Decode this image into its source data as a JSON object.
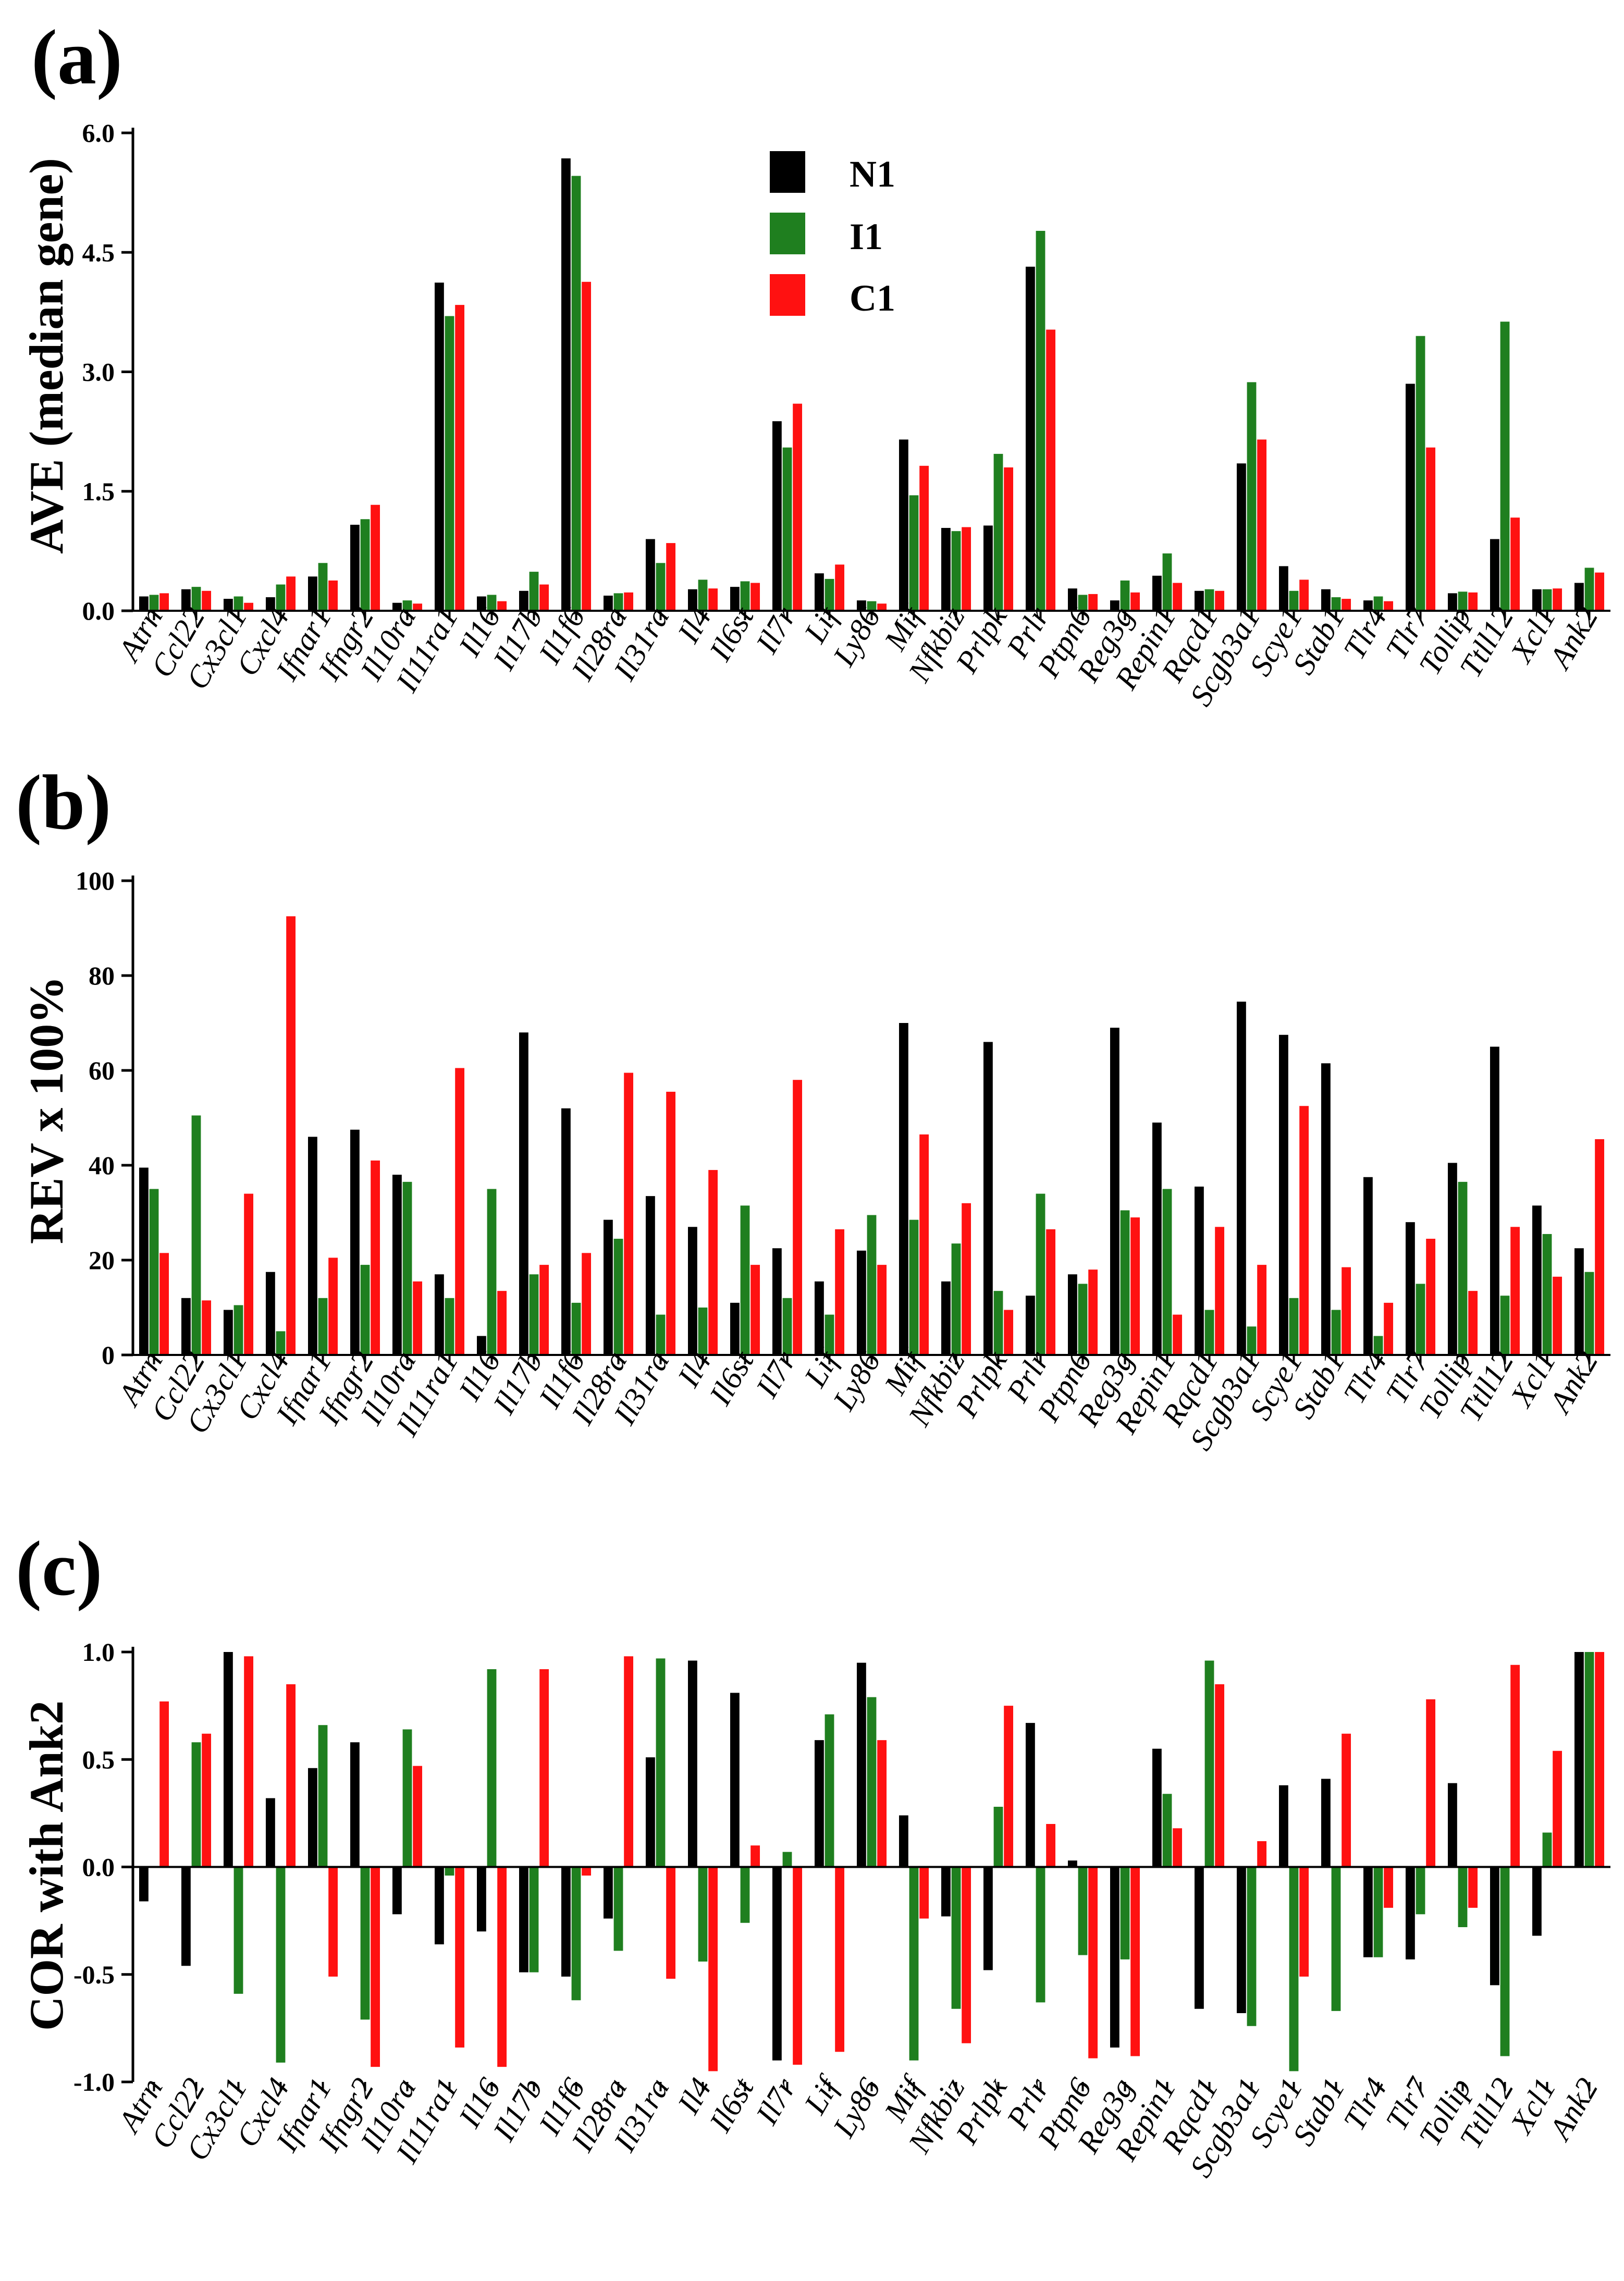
{
  "colors": {
    "N1": "#000000",
    "I1": "#1f7f1f",
    "C1": "#ff1111"
  },
  "legend": [
    {
      "key": "N1",
      "label": "N1"
    },
    {
      "key": "I1",
      "label": "I1"
    },
    {
      "key": "C1",
      "label": "C1"
    }
  ],
  "chart_data": [
    {
      "panel": "(a)",
      "type": "bar",
      "title": "",
      "xlabel": "",
      "ylabel": "AVE (median gene)",
      "ylim": [
        0,
        6.0
      ],
      "yticks": [
        0.0,
        1.5,
        3.0,
        4.5,
        6.0
      ],
      "ytick_labels": [
        "0.0",
        "1.5",
        "3.0",
        "4.5",
        "6.0"
      ],
      "legend_position": "top-center",
      "categories": [
        "Atrn",
        "Ccl22",
        "Cx3cl1",
        "Cxcl4",
        "Ifnar1",
        "Ifngr2",
        "Il10ra",
        "Il11ra1",
        "Il16",
        "Il17b",
        "Il1f6",
        "Il28ra",
        "Il31ra",
        "Il4",
        "Il6st",
        "Il7r",
        "Lif",
        "Ly86",
        "Mif",
        "Nfkbiz",
        "Prlpk",
        "Prlr",
        "Ptpn6",
        "Reg3g",
        "Repin1",
        "Rqcd1",
        "Scgb3a1",
        "Scye1",
        "Stab1",
        "Tlr4",
        "Tlr7",
        "Tollip",
        "Ttll12",
        "Xcl1",
        "Ank2"
      ],
      "series": [
        {
          "name": "N1",
          "values": [
            0.18,
            0.27,
            0.15,
            0.17,
            0.43,
            1.08,
            0.1,
            4.12,
            0.18,
            0.25,
            5.68,
            0.19,
            0.9,
            0.27,
            0.3,
            2.38,
            0.47,
            0.13,
            2.15,
            1.04,
            1.07,
            4.32,
            0.28,
            0.13,
            0.44,
            0.25,
            1.85,
            0.56,
            0.27,
            0.13,
            2.85,
            0.22,
            0.9,
            0.27,
            0.35
          ]
        },
        {
          "name": "I1",
          "values": [
            0.2,
            0.3,
            0.18,
            0.33,
            0.6,
            1.15,
            0.13,
            3.7,
            0.2,
            0.49,
            5.46,
            0.22,
            0.6,
            0.39,
            0.37,
            2.05,
            0.4,
            0.12,
            1.45,
            1.0,
            1.97,
            4.77,
            0.2,
            0.38,
            0.72,
            0.27,
            2.87,
            0.25,
            0.17,
            0.18,
            3.45,
            0.24,
            3.63,
            0.27,
            0.54
          ]
        },
        {
          "name": "C1",
          "values": [
            0.22,
            0.25,
            0.1,
            0.43,
            0.38,
            1.33,
            0.09,
            3.84,
            0.12,
            0.33,
            4.13,
            0.23,
            0.85,
            0.28,
            0.35,
            2.6,
            0.58,
            0.09,
            1.82,
            1.05,
            1.8,
            3.53,
            0.21,
            0.23,
            0.35,
            0.25,
            2.15,
            0.39,
            0.15,
            0.12,
            2.05,
            0.23,
            1.17,
            0.28,
            0.48
          ]
        }
      ]
    },
    {
      "panel": "(b)",
      "type": "bar",
      "title": "",
      "xlabel": "",
      "ylabel": "REV x 100%",
      "ylim": [
        0,
        100
      ],
      "yticks": [
        0,
        20,
        40,
        60,
        80,
        100
      ],
      "ytick_labels": [
        "0",
        "20",
        "40",
        "60",
        "80",
        "100"
      ],
      "categories": [
        "Atrn",
        "Ccl22",
        "Cx3cl1",
        "Cxcl4",
        "Ifnar1",
        "Ifngr2",
        "Il10ra",
        "Il11ra1",
        "Il16",
        "Il17b",
        "Il1f6",
        "Il28ra",
        "Il31ra",
        "Il4",
        "Il6st",
        "Il7r",
        "Lif",
        "Ly86",
        "Mif",
        "Nfkbiz",
        "Prlpk",
        "Prlr",
        "Ptpn6",
        "Reg3g",
        "Repin1",
        "Rqcd1",
        "Scgb3a1",
        "Scye1",
        "Stab1",
        "Tlr4",
        "Tlr7",
        "Tollip",
        "Ttll12",
        "Xcl1",
        "Ank2"
      ],
      "series": [
        {
          "name": "N1",
          "values": [
            39.5,
            12,
            9.5,
            17.5,
            46,
            47.5,
            38,
            17,
            4,
            68,
            52,
            28.5,
            33.5,
            27,
            11,
            22.5,
            15.5,
            22,
            70,
            15.5,
            66,
            12.5,
            17,
            69,
            49,
            35.5,
            74.5,
            67.5,
            61.5,
            37.5,
            28,
            40.5,
            65,
            31.5,
            22.5
          ]
        },
        {
          "name": "I1",
          "values": [
            35,
            50.5,
            10.5,
            5,
            12,
            19,
            36.5,
            12,
            35,
            17,
            11,
            24.5,
            8.5,
            10,
            31.5,
            12,
            8.5,
            29.5,
            28.5,
            23.5,
            13.5,
            34,
            15,
            30.5,
            35,
            9.5,
            6,
            12,
            9.5,
            4,
            15,
            36.5,
            12.5,
            25.5,
            17.5
          ]
        },
        {
          "name": "C1",
          "values": [
            21.5,
            11.5,
            34,
            92.5,
            20.5,
            41,
            15.5,
            60.5,
            13.5,
            19,
            21.5,
            59.5,
            55.5,
            39,
            19,
            58,
            26.5,
            19,
            46.5,
            32,
            9.5,
            26.5,
            18,
            29,
            8.5,
            27,
            19,
            52.5,
            18.5,
            11,
            24.5,
            13.5,
            27,
            16.5,
            45.5
          ]
        }
      ]
    },
    {
      "panel": "(c)",
      "type": "bar",
      "title": "",
      "xlabel": "",
      "ylabel": "COR with Ank2",
      "ylim": [
        -1.0,
        1.0
      ],
      "yticks": [
        -1.0,
        -0.5,
        0.0,
        0.5,
        1.0
      ],
      "ytick_labels": [
        "-1.0",
        "-0.5",
        "0.0",
        "0.5",
        "1.0"
      ],
      "categories": [
        "Atrn",
        "Ccl22",
        "Cx3cl1",
        "Cxcl4",
        "Ifnar1",
        "Ifngr2",
        "Il10ra",
        "Il11ra1",
        "Il16",
        "Il17b",
        "Il1f6",
        "Il28ra",
        "Il31ra",
        "Il4",
        "Il6st",
        "Il7r",
        "Lif",
        "Ly86",
        "Mif",
        "Nfkbiz",
        "Prlpk",
        "Prlr",
        "Ptpn6",
        "Reg3g",
        "Repin1",
        "Rqcd1",
        "Scgb3a1",
        "Scye1",
        "Stab1",
        "Tlr4",
        "Tlr7",
        "Tollip",
        "Ttll12",
        "Xcl1",
        "Ank2"
      ],
      "series": [
        {
          "name": "N1",
          "values": [
            -0.16,
            -0.46,
            1.0,
            0.32,
            0.46,
            0.58,
            -0.22,
            -0.36,
            -0.3,
            -0.49,
            -0.51,
            -0.24,
            0.51,
            0.96,
            0.81,
            -0.9,
            0.59,
            0.95,
            0.24,
            -0.23,
            -0.48,
            0.67,
            0.03,
            -0.84,
            0.55,
            -0.66,
            -0.68,
            0.38,
            0.41,
            -0.42,
            -0.43,
            0.39,
            -0.55,
            -0.32,
            1.0
          ]
        },
        {
          "name": "I1",
          "values": [
            0.0,
            0.58,
            -0.59,
            -0.91,
            0.66,
            -0.71,
            0.64,
            -0.04,
            0.92,
            -0.49,
            -0.62,
            -0.39,
            0.97,
            -0.44,
            -0.26,
            0.07,
            0.71,
            0.79,
            -0.9,
            -0.66,
            0.28,
            -0.63,
            -0.41,
            -0.43,
            0.34,
            0.96,
            -0.74,
            -0.95,
            -0.67,
            -0.42,
            -0.22,
            -0.28,
            -0.88,
            0.16,
            1.0
          ]
        },
        {
          "name": "C1",
          "values": [
            0.77,
            0.62,
            0.98,
            0.85,
            -0.51,
            -0.93,
            0.47,
            -0.84,
            -0.93,
            0.92,
            -0.04,
            0.98,
            -0.52,
            -0.95,
            0.1,
            -0.92,
            -0.86,
            0.59,
            -0.24,
            -0.82,
            0.75,
            0.2,
            -0.89,
            -0.88,
            0.18,
            0.85,
            0.12,
            -0.51,
            0.62,
            -0.19,
            0.78,
            -0.19,
            0.94,
            0.54,
            1.0
          ]
        }
      ]
    }
  ]
}
